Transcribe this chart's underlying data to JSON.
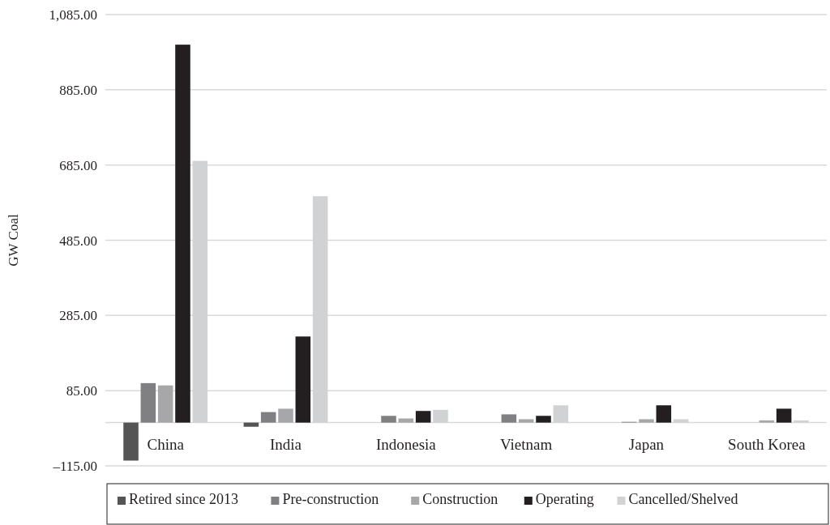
{
  "chart_data": {
    "type": "bar",
    "ylabel": "GW Coal",
    "categories": [
      "China",
      "India",
      "Indonesia",
      "Vietnam",
      "Japan",
      "South Korea"
    ],
    "series": [
      {
        "name": "Retired since 2013",
        "color": "#555556",
        "values": [
          -101,
          -11,
          0,
          0,
          0,
          0
        ]
      },
      {
        "name": "Pre-construction",
        "color": "#808082",
        "values": [
          105,
          28,
          18,
          22,
          2,
          0
        ]
      },
      {
        "name": "Construction",
        "color": "#a7a7a9",
        "values": [
          99,
          37,
          11,
          9,
          9,
          6
        ]
      },
      {
        "name": "Operating",
        "color": "#231f20",
        "values": [
          1005,
          229,
          31,
          18,
          46,
          37
        ]
      },
      {
        "name": "Cancelled/Shelved",
        "color": "#d1d2d4",
        "values": [
          696,
          602,
          34,
          46,
          9,
          6
        ]
      }
    ],
    "ylim": [
      -115,
      1085
    ],
    "yticks": [
      {
        "value": -115,
        "label": "–115.00"
      },
      {
        "value": 85,
        "label": "85.00"
      },
      {
        "value": 285,
        "label": "285.00"
      },
      {
        "value": 485,
        "label": "485.00"
      },
      {
        "value": 685,
        "label": "685.00"
      },
      {
        "value": 885,
        "label": "885.00"
      },
      {
        "value": 1085,
        "label": "1,085.00"
      }
    ],
    "grid": "y",
    "legend": "bottom"
  }
}
